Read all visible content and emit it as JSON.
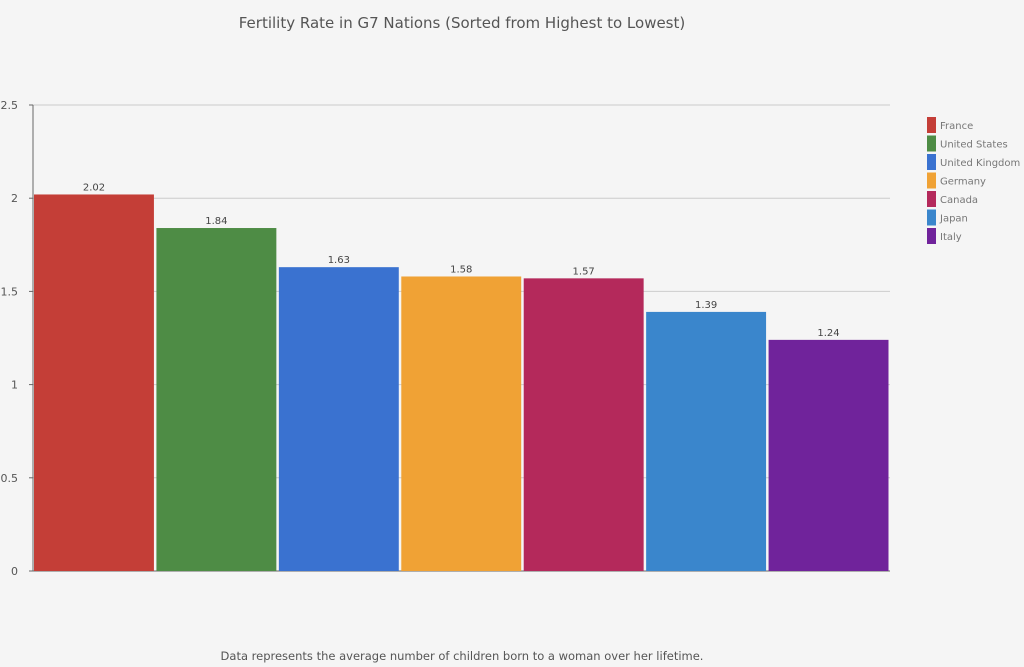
{
  "chart_data": {
    "type": "bar",
    "title": "Fertility Rate in G7 Nations (Sorted from Highest to Lowest)",
    "footnote": "Data represents the average number of children born to a woman over her lifetime.",
    "categories": [
      "France",
      "United States",
      "United Kingdom",
      "Germany",
      "Canada",
      "Japan",
      "Italy"
    ],
    "values": [
      2.02,
      1.84,
      1.63,
      1.58,
      1.57,
      1.39,
      1.24
    ],
    "value_labels": [
      "2.02",
      "1.84",
      "1.63",
      "1.58",
      "1.57",
      "1.39",
      "1.24"
    ],
    "colors": [
      "#c43e37",
      "#4e8c45",
      "#3a72d0",
      "#f0a235",
      "#b4295b",
      "#3a86cc",
      "#70239b"
    ],
    "ylim": [
      0,
      2.5
    ],
    "yticks": [
      0,
      0.5,
      1,
      1.5,
      2,
      2.5
    ],
    "ytick_labels": [
      "0",
      "0.5",
      "1",
      "1.5",
      "2",
      "2.5"
    ],
    "xlabel": "",
    "ylabel": "",
    "grid": true,
    "legend_placement": "right"
  }
}
